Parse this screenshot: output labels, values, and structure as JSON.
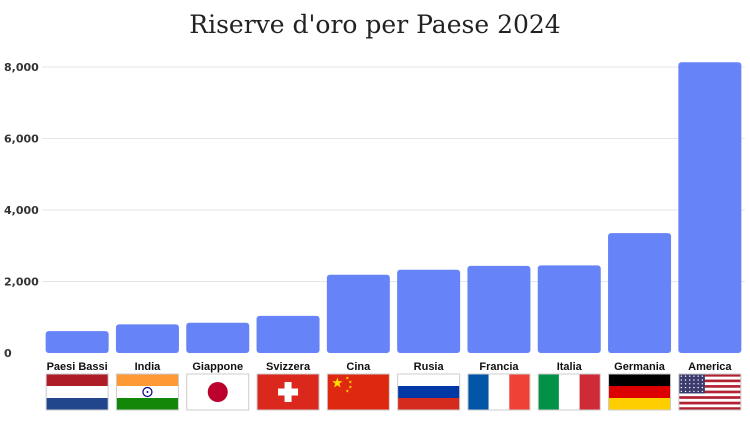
{
  "chart_data": {
    "type": "bar",
    "title": "Riserve d'oro per Paese 2024",
    "xlabel": "",
    "ylabel": "",
    "ylim": [
      0,
      8000
    ],
    "yticks": [
      0,
      2000,
      4000,
      6000,
      8000
    ],
    "ytick_labels": [
      "0",
      "2,000",
      "4,000",
      "6,000",
      "8,000"
    ],
    "grid": true,
    "bar_color": "#6684f7",
    "categories": [
      "Paesi Bassi",
      "India",
      "Giappone",
      "Svizzera",
      "Cina",
      "Rusia",
      "Francia",
      "Italia",
      "Germania",
      "America"
    ],
    "values": [
      612,
      800,
      846,
      1040,
      2190,
      2330,
      2437,
      2452,
      3352,
      8133
    ],
    "flags": [
      "netherlands-flag",
      "india-flag",
      "japan-flag",
      "switzerland-flag",
      "china-flag",
      "russia-flag",
      "france-flag",
      "italy-flag",
      "germany-flag",
      "usa-flag"
    ]
  }
}
